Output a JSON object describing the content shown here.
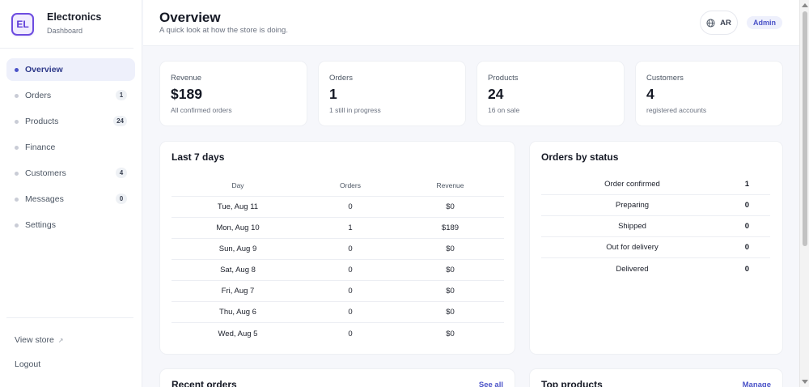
{
  "brand": {
    "logo": "EL",
    "title": "Electronics",
    "subtitle": "Dashboard"
  },
  "sidebar": {
    "items": [
      {
        "label": "Overview",
        "badge": "",
        "active": true
      },
      {
        "label": "Orders",
        "badge": "1"
      },
      {
        "label": "Products",
        "badge": "24"
      },
      {
        "label": "Finance",
        "badge": ""
      },
      {
        "label": "Customers",
        "badge": "4"
      },
      {
        "label": "Messages",
        "badge": "0"
      },
      {
        "label": "Settings",
        "badge": ""
      }
    ],
    "view_store": "View store",
    "view_store_icon": "↗",
    "logout": "Logout"
  },
  "header": {
    "title": "Overview",
    "subtitle": "A quick look at how the store is doing.",
    "language": "AR",
    "role": "Admin"
  },
  "stats": [
    {
      "label": "Revenue",
      "value": "$189",
      "sub": "All confirmed orders"
    },
    {
      "label": "Orders",
      "value": "1",
      "sub": "1 still in progress"
    },
    {
      "label": "Products",
      "value": "24",
      "sub": "16 on sale"
    },
    {
      "label": "Customers",
      "value": "4",
      "sub": "registered accounts"
    }
  ],
  "last7": {
    "title": "Last 7 days",
    "columns": [
      "Day",
      "Orders",
      "Revenue"
    ],
    "rows": [
      [
        "Tue, Aug 11",
        "0",
        "$0"
      ],
      [
        "Mon, Aug 10",
        "1",
        "$189"
      ],
      [
        "Sun, Aug 9",
        "0",
        "$0"
      ],
      [
        "Sat, Aug 8",
        "0",
        "$0"
      ],
      [
        "Fri, Aug 7",
        "0",
        "$0"
      ],
      [
        "Thu, Aug 6",
        "0",
        "$0"
      ],
      [
        "Wed, Aug 5",
        "0",
        "$0"
      ]
    ]
  },
  "status": {
    "title": "Orders by status",
    "rows": [
      {
        "label": "Order confirmed",
        "count": "1"
      },
      {
        "label": "Preparing",
        "count": "0"
      },
      {
        "label": "Shipped",
        "count": "0"
      },
      {
        "label": "Out for delivery",
        "count": "0"
      },
      {
        "label": "Delivered",
        "count": "0"
      }
    ]
  },
  "recent_orders": {
    "title": "Recent orders",
    "link": "See all"
  },
  "top_products": {
    "title": "Top products",
    "link": "Manage"
  },
  "colors": {
    "accent": "#4b53c8",
    "brand": "#6d4ce0",
    "background": "#f6f7fb"
  }
}
